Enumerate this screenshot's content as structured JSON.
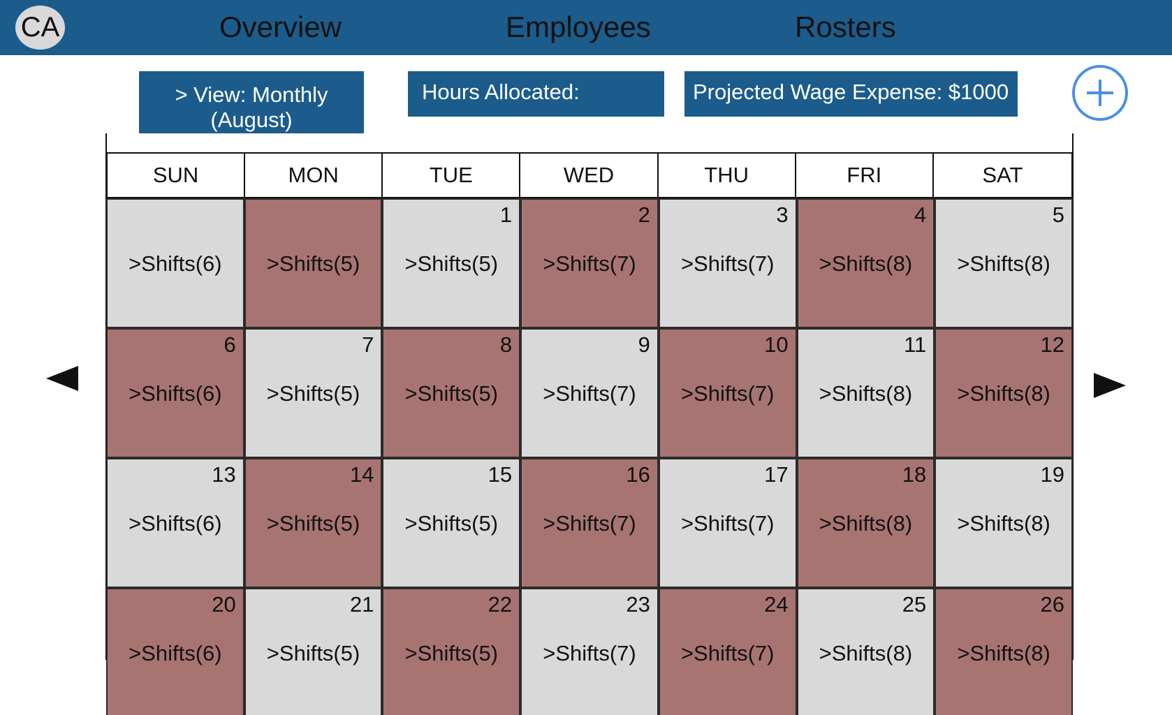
{
  "header": {
    "avatar_initials": "CA",
    "nav": [
      "Overview",
      "Employees",
      "Rosters"
    ]
  },
  "toolbar": {
    "view_label_line1": ">  View: Monthly",
    "view_label_line2": "(August)",
    "hours_label": "Hours Allocated:",
    "wage_label": "Projected Wage Expense: $1000"
  },
  "colors": {
    "header_bg": "#1c5c8c",
    "cell_light": "#d9d9d9",
    "cell_dark": "#a87472",
    "add_button": "#4a90e2"
  },
  "icons": {
    "add": "plus-circle-icon",
    "prev": "arrow-left-icon",
    "next": "arrow-right-icon"
  },
  "calendar": {
    "month": "August",
    "weekdays": [
      "SUN",
      "MON",
      "TUE",
      "WED",
      "THU",
      "FRI",
      "SAT"
    ],
    "rows": [
      [
        {
          "day": "",
          "shifts": ">Shifts(6)",
          "tone": "light"
        },
        {
          "day": "",
          "shifts": ">Shifts(5)",
          "tone": "dark"
        },
        {
          "day": "1",
          "shifts": ">Shifts(5)",
          "tone": "light"
        },
        {
          "day": "2",
          "shifts": ">Shifts(7)",
          "tone": "dark"
        },
        {
          "day": "3",
          "shifts": ">Shifts(7)",
          "tone": "light"
        },
        {
          "day": "4",
          "shifts": ">Shifts(8)",
          "tone": "dark"
        },
        {
          "day": "5",
          "shifts": ">Shifts(8)",
          "tone": "light"
        }
      ],
      [
        {
          "day": "6",
          "shifts": ">Shifts(6)",
          "tone": "dark"
        },
        {
          "day": "7",
          "shifts": ">Shifts(5)",
          "tone": "light"
        },
        {
          "day": "8",
          "shifts": ">Shifts(5)",
          "tone": "dark"
        },
        {
          "day": "9",
          "shifts": ">Shifts(7)",
          "tone": "light"
        },
        {
          "day": "10",
          "shifts": ">Shifts(7)",
          "tone": "dark"
        },
        {
          "day": "11",
          "shifts": ">Shifts(8)",
          "tone": "light"
        },
        {
          "day": "12",
          "shifts": ">Shifts(8)",
          "tone": "dark"
        }
      ],
      [
        {
          "day": "13",
          "shifts": ">Shifts(6)",
          "tone": "light"
        },
        {
          "day": "14",
          "shifts": ">Shifts(5)",
          "tone": "dark"
        },
        {
          "day": "15",
          "shifts": ">Shifts(5)",
          "tone": "light"
        },
        {
          "day": "16",
          "shifts": ">Shifts(7)",
          "tone": "dark"
        },
        {
          "day": "17",
          "shifts": ">Shifts(7)",
          "tone": "light"
        },
        {
          "day": "18",
          "shifts": ">Shifts(8)",
          "tone": "dark"
        },
        {
          "day": "19",
          "shifts": ">Shifts(8)",
          "tone": "light"
        }
      ],
      [
        {
          "day": "20",
          "shifts": ">Shifts(6)",
          "tone": "dark"
        },
        {
          "day": "21",
          "shifts": ">Shifts(5)",
          "tone": "light"
        },
        {
          "day": "22",
          "shifts": ">Shifts(5)",
          "tone": "dark"
        },
        {
          "day": "23",
          "shifts": ">Shifts(7)",
          "tone": "light"
        },
        {
          "day": "24",
          "shifts": ">Shifts(7)",
          "tone": "dark"
        },
        {
          "day": "25",
          "shifts": ">Shifts(8)",
          "tone": "light"
        },
        {
          "day": "26",
          "shifts": ">Shifts(8)",
          "tone": "dark"
        }
      ]
    ]
  }
}
